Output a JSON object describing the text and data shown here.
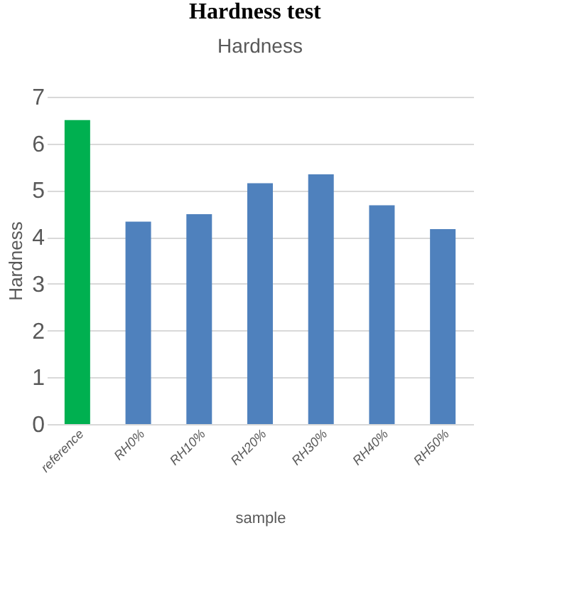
{
  "chart_data": {
    "type": "bar",
    "title": "Hardness",
    "xlabel": "sample",
    "ylabel": "Hardness",
    "annotations": [
      "Hardness test"
    ],
    "categories": [
      "reference",
      "RH0%",
      "RH10%",
      "RH20%",
      "RH30%",
      "RH40%",
      "RH50%"
    ],
    "values": [
      6.5,
      4.33,
      4.49,
      5.15,
      5.34,
      4.68,
      4.17
    ],
    "colors": [
      "#00b050",
      "#4f81bd",
      "#4f81bd",
      "#4f81bd",
      "#4f81bd",
      "#4f81bd",
      "#4f81bd"
    ],
    "ylim": [
      0,
      7
    ],
    "yticks": [
      0,
      1,
      2,
      3,
      4,
      5,
      6,
      7
    ],
    "grid": "y"
  }
}
